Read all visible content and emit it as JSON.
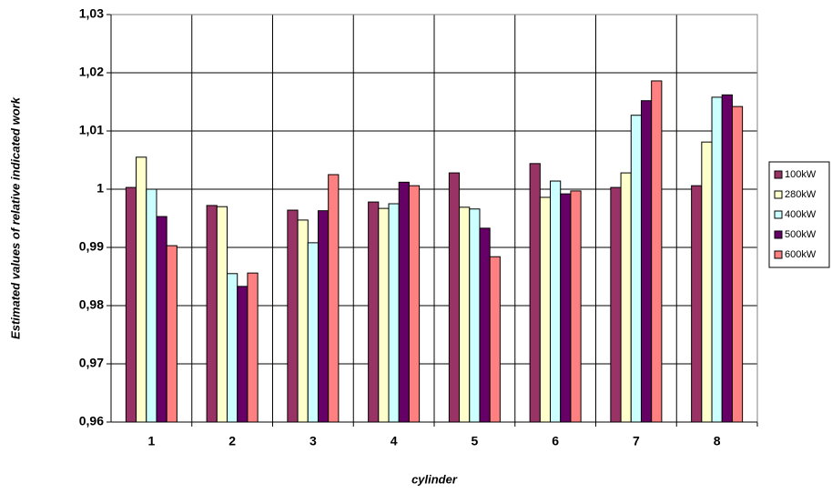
{
  "chart_data": {
    "type": "bar",
    "x_label": "cylinder",
    "y_label": "Estimated values of relative indicated work",
    "categories": [
      "1",
      "2",
      "3",
      "4",
      "5",
      "6",
      "7",
      "8"
    ],
    "series": [
      {
        "name": "100kW",
        "color": "#993366",
        "values": [
          1.0003,
          0.9972,
          0.9964,
          0.9978,
          1.0028,
          1.0044,
          1.0003,
          1.0006
        ]
      },
      {
        "name": "280kW",
        "color": "#ffffcc",
        "values": [
          1.0055,
          0.997,
          0.9947,
          0.9967,
          0.9969,
          0.9986,
          1.0028,
          1.0081
        ]
      },
      {
        "name": "400kW",
        "color": "#ccffff",
        "values": [
          1.0,
          0.9855,
          0.9908,
          0.9975,
          0.9966,
          1.0014,
          1.0127,
          1.0158
        ]
      },
      {
        "name": "500kW",
        "color": "#660066",
        "values": [
          0.9953,
          0.9833,
          0.9963,
          1.0012,
          0.9933,
          0.9992,
          1.0152,
          1.0162
        ]
      },
      {
        "name": "600kW",
        "color": "#ff8080",
        "values": [
          0.9903,
          0.9856,
          1.0025,
          1.0006,
          0.9884,
          0.9997,
          1.0186,
          1.0142
        ]
      }
    ],
    "ylim": [
      0.96,
      1.03
    ],
    "yticks": [
      {
        "value": 0.96,
        "label": "0,96"
      },
      {
        "value": 0.97,
        "label": "0,97"
      },
      {
        "value": 0.98,
        "label": "0,98"
      },
      {
        "value": 0.99,
        "label": "0,99"
      },
      {
        "value": 1,
        "label": "1"
      },
      {
        "value": 1.01,
        "label": "1,01"
      },
      {
        "value": 1.02,
        "label": "1,02"
      },
      {
        "value": 1.03,
        "label": "1,03"
      }
    ],
    "grid": true,
    "legend": "right"
  }
}
